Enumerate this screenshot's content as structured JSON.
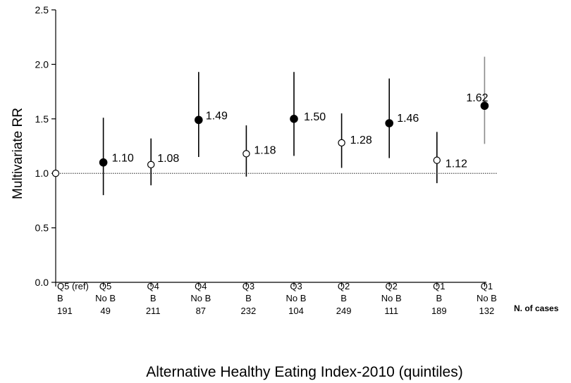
{
  "chart_data": {
    "type": "scatter",
    "title": "",
    "ylabel": "Multivariate RR",
    "xlabel": "Alternative Healthy Eating Index-2010 (quintiles)",
    "ylim": [
      0.0,
      2.5
    ],
    "yticks": [
      "0.0",
      "0.5",
      "1.0",
      "1.5",
      "2.0",
      "2.5"
    ],
    "reference_line": 1.0,
    "n_cases_label": "N. of cases",
    "categories": [
      {
        "line1": "Q5 (ref)",
        "line2": "B",
        "n": "191",
        "rr": 1.0,
        "lo": null,
        "hi": null,
        "filled": false,
        "label": ""
      },
      {
        "line1": "Q5",
        "line2": "No B",
        "n": "49",
        "rr": 1.1,
        "lo": 0.8,
        "hi": 1.51,
        "filled": true,
        "label": "1.10"
      },
      {
        "line1": "Q4",
        "line2": "B",
        "n": "211",
        "rr": 1.08,
        "lo": 0.89,
        "hi": 1.32,
        "filled": false,
        "label": "1.08"
      },
      {
        "line1": "Q4",
        "line2": "No B",
        "n": "87",
        "rr": 1.49,
        "lo": 1.15,
        "hi": 1.93,
        "filled": true,
        "label": "1.49"
      },
      {
        "line1": "Q3",
        "line2": "B",
        "n": "232",
        "rr": 1.18,
        "lo": 0.97,
        "hi": 1.44,
        "filled": false,
        "label": "1.18"
      },
      {
        "line1": "Q3",
        "line2": "No B",
        "n": "104",
        "rr": 1.5,
        "lo": 1.16,
        "hi": 1.93,
        "filled": true,
        "label": "1.50"
      },
      {
        "line1": "Q2",
        "line2": "B",
        "n": "249",
        "rr": 1.28,
        "lo": 1.05,
        "hi": 1.55,
        "filled": false,
        "label": "1.28"
      },
      {
        "line1": "Q2",
        "line2": "No B",
        "n": "111",
        "rr": 1.46,
        "lo": 1.14,
        "hi": 1.87,
        "filled": true,
        "label": "1.46"
      },
      {
        "line1": "Q1",
        "line2": "B",
        "n": "189",
        "rr": 1.12,
        "lo": 0.91,
        "hi": 1.38,
        "filled": false,
        "label": "1.12"
      },
      {
        "line1": "Q1",
        "line2": "No B",
        "n": "132",
        "rr": 1.62,
        "lo": 1.27,
        "hi": 2.07,
        "filled": true,
        "label": "1.62"
      }
    ]
  }
}
